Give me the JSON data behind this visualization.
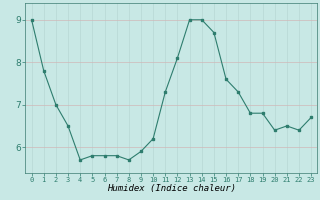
{
  "x": [
    0,
    1,
    2,
    3,
    4,
    5,
    6,
    7,
    8,
    9,
    10,
    11,
    12,
    13,
    14,
    15,
    16,
    17,
    18,
    19,
    20,
    21,
    22,
    23
  ],
  "y": [
    9.0,
    7.8,
    7.0,
    6.5,
    5.7,
    5.8,
    5.8,
    5.8,
    5.7,
    5.9,
    6.2,
    7.3,
    8.1,
    9.0,
    9.0,
    8.7,
    7.6,
    7.3,
    6.8,
    6.8,
    6.4,
    6.5,
    6.4,
    6.7
  ],
  "xlabel": "Humidex (Indice chaleur)",
  "line_color": "#2e7d6e",
  "bg_color": "#c8e8e5",
  "grid_major_color": "#b8d8d5",
  "grid_minor_color": "#d0b8b8",
  "ylim": [
    5.4,
    9.4
  ],
  "xlim": [
    -0.5,
    23.5
  ],
  "yticks": [
    6,
    7,
    8,
    9
  ],
  "xticks": [
    0,
    1,
    2,
    3,
    4,
    5,
    6,
    7,
    8,
    9,
    10,
    11,
    12,
    13,
    14,
    15,
    16,
    17,
    18,
    19,
    20,
    21,
    22,
    23
  ],
  "xlabel_fontsize": 6.5,
  "xtick_fontsize": 5.0,
  "ytick_fontsize": 6.5
}
